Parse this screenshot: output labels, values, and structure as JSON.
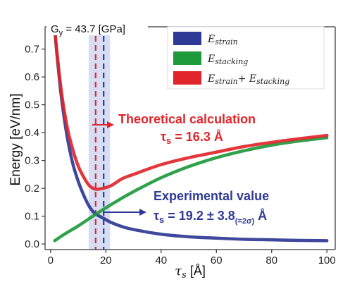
{
  "chart_data": {
    "type": "line",
    "xlabel": "τ_s [Å]",
    "ylabel": "Energy [eV/nm]",
    "xlim": [
      -2,
      103
    ],
    "ylim": [
      -0.02,
      0.78
    ],
    "x_ticks": [
      "0",
      "20",
      "40",
      "60",
      "80",
      "100"
    ],
    "y_ticks": [
      "0.0",
      "0.1",
      "0.2",
      "0.3",
      "0.4",
      "0.5",
      "0.6",
      "0.7"
    ],
    "grid": false,
    "legend_position": "top-right",
    "legend": [
      {
        "label": "E_strain",
        "color": "#2e3a95"
      },
      {
        "label": "E_stacking",
        "color": "#1e9a3c"
      },
      {
        "label": "E_strain+ E_stacking",
        "color": "#e0262b"
      }
    ],
    "series": [
      {
        "name": "E_strain",
        "color": "#2e3a95",
        "x": [
          1.5,
          2.5,
          4,
          6,
          8,
          10,
          12,
          14,
          16,
          19.2,
          22,
          26,
          30,
          40,
          50,
          60,
          70,
          80,
          90,
          100
        ],
        "values": [
          0.77,
          0.66,
          0.52,
          0.385,
          0.29,
          0.225,
          0.175,
          0.135,
          0.11,
          0.092,
          0.077,
          0.062,
          0.052,
          0.035,
          0.026,
          0.021,
          0.017,
          0.015,
          0.013,
          0.012
        ]
      },
      {
        "name": "E_stacking",
        "color": "#1e9a3c",
        "x": [
          1.5,
          5,
          10,
          15,
          20,
          25,
          30,
          40,
          50,
          60,
          70,
          80,
          90,
          100
        ],
        "values": [
          0.012,
          0.035,
          0.065,
          0.098,
          0.13,
          0.16,
          0.188,
          0.238,
          0.278,
          0.31,
          0.335,
          0.355,
          0.37,
          0.382
        ]
      },
      {
        "name": "E_strain+ E_stacking",
        "color": "#e0262b",
        "x": [
          1.5,
          2.5,
          4,
          6,
          8,
          10,
          12,
          14,
          16.3,
          19,
          22,
          26,
          30,
          40,
          50,
          60,
          70,
          80,
          90,
          100
        ],
        "values": [
          0.77,
          0.67,
          0.54,
          0.42,
          0.34,
          0.28,
          0.24,
          0.21,
          0.197,
          0.2,
          0.21,
          0.235,
          0.25,
          0.285,
          0.31,
          0.33,
          0.35,
          0.365,
          0.378,
          0.39
        ]
      }
    ],
    "shaded_band": {
      "x_range": [
        13.8,
        21.5
      ],
      "color": "#c8d2f0"
    },
    "vlines": [
      {
        "x": 16.3,
        "color": "#e0262b",
        "style": "dashed"
      },
      {
        "x": 19.2,
        "color": "#2e3a95",
        "style": "dashed"
      }
    ],
    "annotations": {
      "gy": "G_y = 43.7 [GPa]",
      "theoretical_title": "Theoretical calculation",
      "theoretical_value": "τ_s = 16.3 Å",
      "experimental_title": "Experimental value",
      "experimental_value": "τ_s = 19.2 ± 3.8(=2σ) Å"
    }
  }
}
